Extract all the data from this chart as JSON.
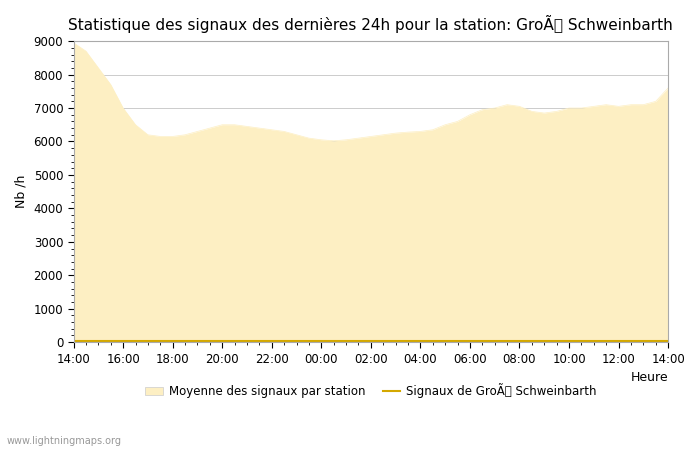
{
  "title": "Statistique des signaux des dernières 24h pour la station: GroÃ Schweinbarth",
  "xlabel": "Heure",
  "ylabel": "Nb /h",
  "ylim": [
    0,
    9000
  ],
  "yticks": [
    0,
    1000,
    2000,
    3000,
    4000,
    5000,
    6000,
    7000,
    8000,
    9000
  ],
  "xtick_labels": [
    "14:00",
    "16:00",
    "18:00",
    "20:00",
    "22:00",
    "00:00",
    "02:00",
    "04:00",
    "06:00",
    "08:00",
    "10:00",
    "12:00",
    "14:00"
  ],
  "fill_color": "#FDEFC3",
  "line_color": "#D4A800",
  "background_color": "#FFFFFF",
  "grid_color": "#CCCCCC",
  "title_fontsize": 11,
  "axis_fontsize": 9,
  "tick_fontsize": 8.5,
  "watermark": "www.lightningmaps.org",
  "legend_fill_label": "Moyenne des signaux par station",
  "legend_line_label": "Signaux de GroÃ Schweinbarth",
  "x_values": [
    0,
    1,
    2,
    3,
    4,
    5,
    6,
    7,
    8,
    9,
    10,
    11,
    12,
    13,
    14,
    15,
    16,
    17,
    18,
    19,
    20,
    21,
    22,
    23,
    24,
    25,
    26,
    27,
    28,
    29,
    30,
    31,
    32,
    33,
    34,
    35,
    36,
    37,
    38,
    39,
    40,
    41,
    42,
    43,
    44,
    45,
    46,
    47,
    48
  ],
  "y_fill": [
    8950,
    8700,
    8200,
    7700,
    7000,
    6500,
    6200,
    6150,
    6150,
    6200,
    6300,
    6400,
    6500,
    6500,
    6450,
    6400,
    6350,
    6300,
    6200,
    6100,
    6050,
    6020,
    6050,
    6100,
    6150,
    6200,
    6250,
    6280,
    6300,
    6350,
    6500,
    6600,
    6800,
    6950,
    7000,
    7100,
    7050,
    6900,
    6850,
    6900,
    7000,
    7000,
    7050,
    7100,
    7050,
    7100,
    7100,
    7200,
    7600
  ],
  "y_line": [
    50,
    50,
    50,
    50,
    50,
    50,
    50,
    50,
    50,
    50,
    50,
    50,
    50,
    50,
    50,
    50,
    50,
    50,
    50,
    50,
    50,
    50,
    50,
    50,
    50,
    50,
    50,
    50,
    50,
    50,
    50,
    50,
    50,
    50,
    50,
    50,
    50,
    50,
    50,
    50,
    50,
    50,
    50,
    50,
    50,
    50,
    50,
    50,
    50
  ]
}
